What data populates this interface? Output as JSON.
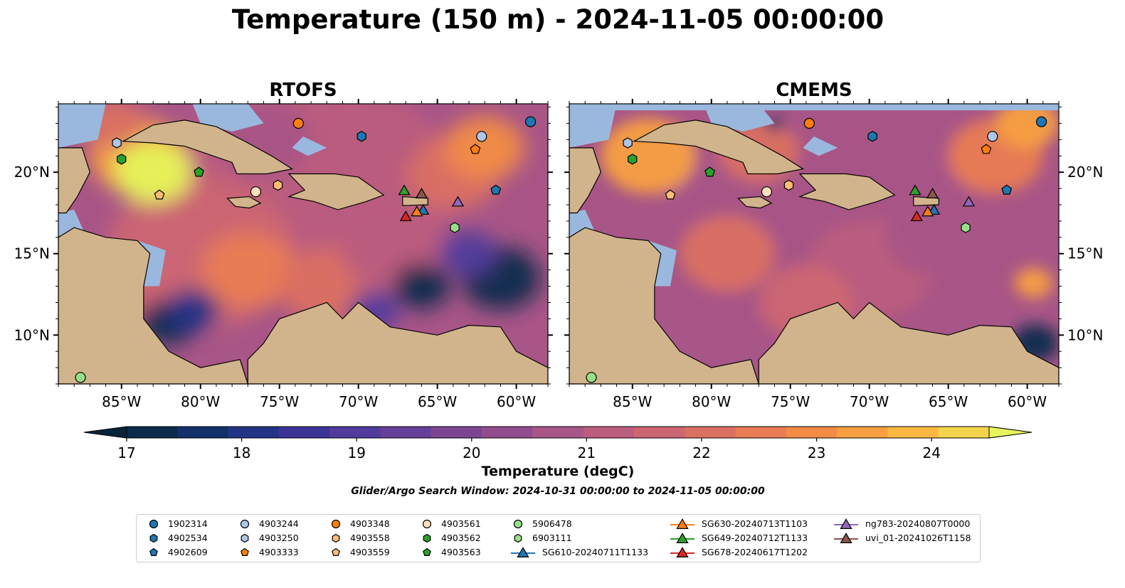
{
  "title": "Temperature (150 m) - 2024-11-05 00:00:00",
  "subtitle": "Glider/Argo Search Window: 2024-10-31 00:00:00 to 2024-11-05 00:00:00",
  "chart_data": {
    "type": "heatmap",
    "panels": [
      {
        "title": "RTOFS",
        "model": "rtofs"
      },
      {
        "title": "CMEMS",
        "model": "cmems"
      }
    ],
    "xlim": [
      -89,
      -58
    ],
    "ylim": [
      7,
      24.2
    ],
    "xticks": [
      -85,
      -80,
      -75,
      -70,
      -65,
      -60
    ],
    "xticklabels": [
      "85°W",
      "80°W",
      "75°W",
      "70°W",
      "65°W",
      "60°W"
    ],
    "yticks": [
      10,
      15,
      20
    ],
    "yticklabels": [
      "10°N",
      "15°N",
      "20°N"
    ],
    "colorbar": {
      "label": "Temperature (degC)",
      "min": 17,
      "max": 24.5,
      "step": 0.5,
      "extend": "both",
      "ticks": [
        17,
        18,
        19,
        20,
        21,
        22,
        23,
        24
      ],
      "ticklabels": [
        "17",
        "18",
        "19",
        "20",
        "21",
        "22",
        "23",
        "24"
      ],
      "colors": [
        "#0c2b4d",
        "#12306a",
        "#233386",
        "#3b3496",
        "#513b9c",
        "#653f9a",
        "#7c4594",
        "#924c8e",
        "#a85587",
        "#bb5d7e",
        "#cc6672",
        "#db7062",
        "#e97c52",
        "#f28c45",
        "#f8a040",
        "#fab843",
        "#f3d34c"
      ],
      "under_color": "#08243a",
      "over_color": "#e6f45b"
    },
    "land_color": "#d2b48c",
    "shelf_color": "#9ab8de",
    "markers": [
      {
        "name": "1902314",
        "shape": "circle",
        "color": "#1f77b4",
        "lon": -59.1,
        "lat": 23.1
      },
      {
        "name": "4902534",
        "shape": "hexagon",
        "color": "#1f77b4",
        "lon": -69.8,
        "lat": 22.2
      },
      {
        "name": "4902609",
        "shape": "pentagon",
        "color": "#1f77b4",
        "lon": -61.3,
        "lat": 18.9
      },
      {
        "name": "4903244",
        "shape": "circle",
        "color": "#aec7e8",
        "lon": -62.2,
        "lat": 22.2
      },
      {
        "name": "4903250",
        "shape": "hexagon",
        "color": "#aec7e8",
        "lon": -85.3,
        "lat": 21.8
      },
      {
        "name": "4903333",
        "shape": "pentagon",
        "color": "#ff7f0e",
        "lon": -62.6,
        "lat": 21.4
      },
      {
        "name": "4903348",
        "shape": "circle",
        "color": "#ff7f0e",
        "lon": -73.8,
        "lat": 23.0
      },
      {
        "name": "4903558",
        "shape": "hexagon",
        "color": "#ffbb78",
        "lon": -75.1,
        "lat": 19.2
      },
      {
        "name": "4903559",
        "shape": "pentagon",
        "color": "#ffbb78",
        "lon": -82.6,
        "lat": 18.6
      },
      {
        "name": "4903561",
        "shape": "circle",
        "color": "#ffe0bd",
        "lon": -76.5,
        "lat": 18.8
      },
      {
        "name": "4903562",
        "shape": "hexagon",
        "color": "#2ca02c",
        "lon": -85.0,
        "lat": 20.8
      },
      {
        "name": "4903563",
        "shape": "pentagon",
        "color": "#2ca02c",
        "lon": -80.1,
        "lat": 20.0
      },
      {
        "name": "5906478",
        "shape": "circle",
        "color": "#98df8a",
        "lon": -87.6,
        "lat": 7.4
      },
      {
        "name": "6903111",
        "shape": "hexagon",
        "color": "#98df8a",
        "lon": -63.9,
        "lat": 16.6
      },
      {
        "name": "SG610-20240711T1133",
        "shape": "triangle",
        "color": "#1f77b4",
        "lon": -65.9,
        "lat": 17.7
      },
      {
        "name": "SG630-20240713T1103",
        "shape": "triangle",
        "color": "#ff7f0e",
        "lon": -66.3,
        "lat": 17.6
      },
      {
        "name": "SG649-20240712T1133",
        "shape": "triangle",
        "color": "#2ca02c",
        "lon": -67.1,
        "lat": 18.9
      },
      {
        "name": "SG678-20240617T1202",
        "shape": "triangle",
        "color": "#d62728",
        "lon": -67.0,
        "lat": 17.3
      },
      {
        "name": "ng783-20240807T0000",
        "shape": "triangle",
        "color": "#9467bd",
        "lon": -63.7,
        "lat": 18.2
      },
      {
        "name": "uvi_01-20241026T1158",
        "shape": "triangle",
        "color": "#8c564b",
        "lon": -66.0,
        "lat": 18.7
      }
    ]
  }
}
